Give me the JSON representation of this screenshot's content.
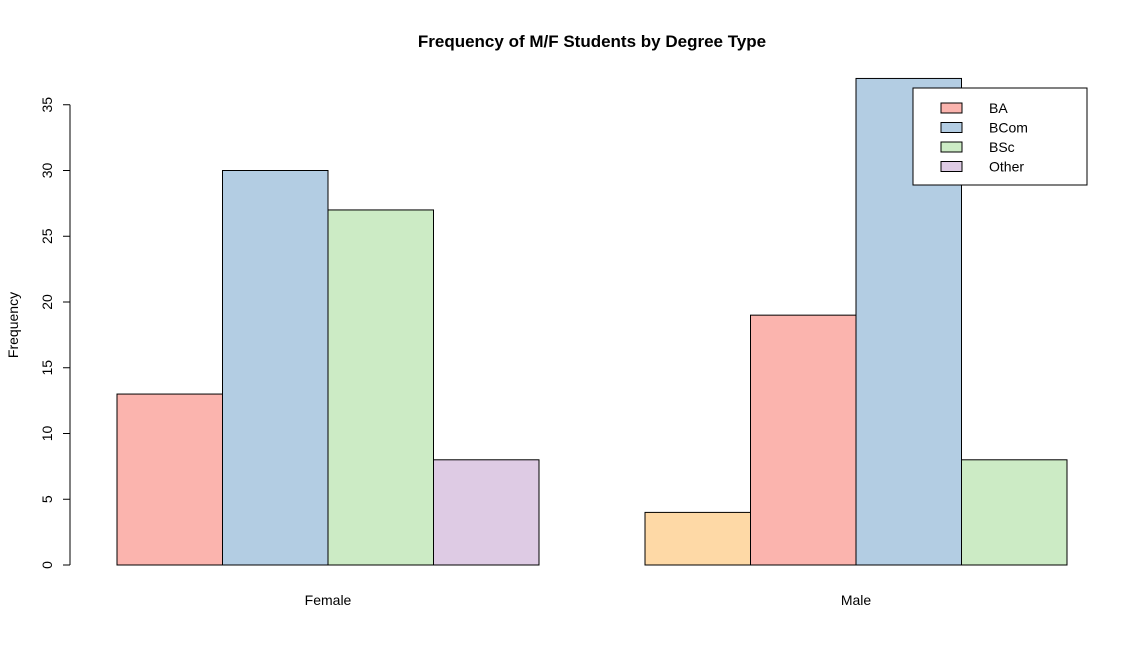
{
  "chart_data": {
    "type": "bar",
    "title": "Frequency of M/F Students by Degree Type",
    "xlabel": "",
    "ylabel": "Frequency",
    "ylim": [
      0,
      37
    ],
    "yticks": [
      0,
      5,
      10,
      15,
      20,
      25,
      30,
      35
    ],
    "grid": false,
    "legend_position": "top-right",
    "groups": [
      {
        "label": "Female",
        "bars": [
          {
            "value": 13,
            "color": "#FBB4AE"
          },
          {
            "value": 30,
            "color": "#B3CDE3"
          },
          {
            "value": 27,
            "color": "#CCEBC5"
          },
          {
            "value": 8,
            "color": "#DECBE4"
          }
        ]
      },
      {
        "label": "Male",
        "bars": [
          {
            "value": 4,
            "color": "#FED9A6"
          },
          {
            "value": 19,
            "color": "#FBB4AE"
          },
          {
            "value": 37,
            "color": "#B3CDE3"
          },
          {
            "value": 8,
            "color": "#CCEBC5"
          }
        ]
      }
    ],
    "legend": [
      {
        "label": "BA",
        "color": "#FBB4AE"
      },
      {
        "label": "BCom",
        "color": "#B3CDE3"
      },
      {
        "label": "BSc",
        "color": "#CCEBC5"
      },
      {
        "label": "Other",
        "color": "#DECBE4"
      }
    ]
  }
}
